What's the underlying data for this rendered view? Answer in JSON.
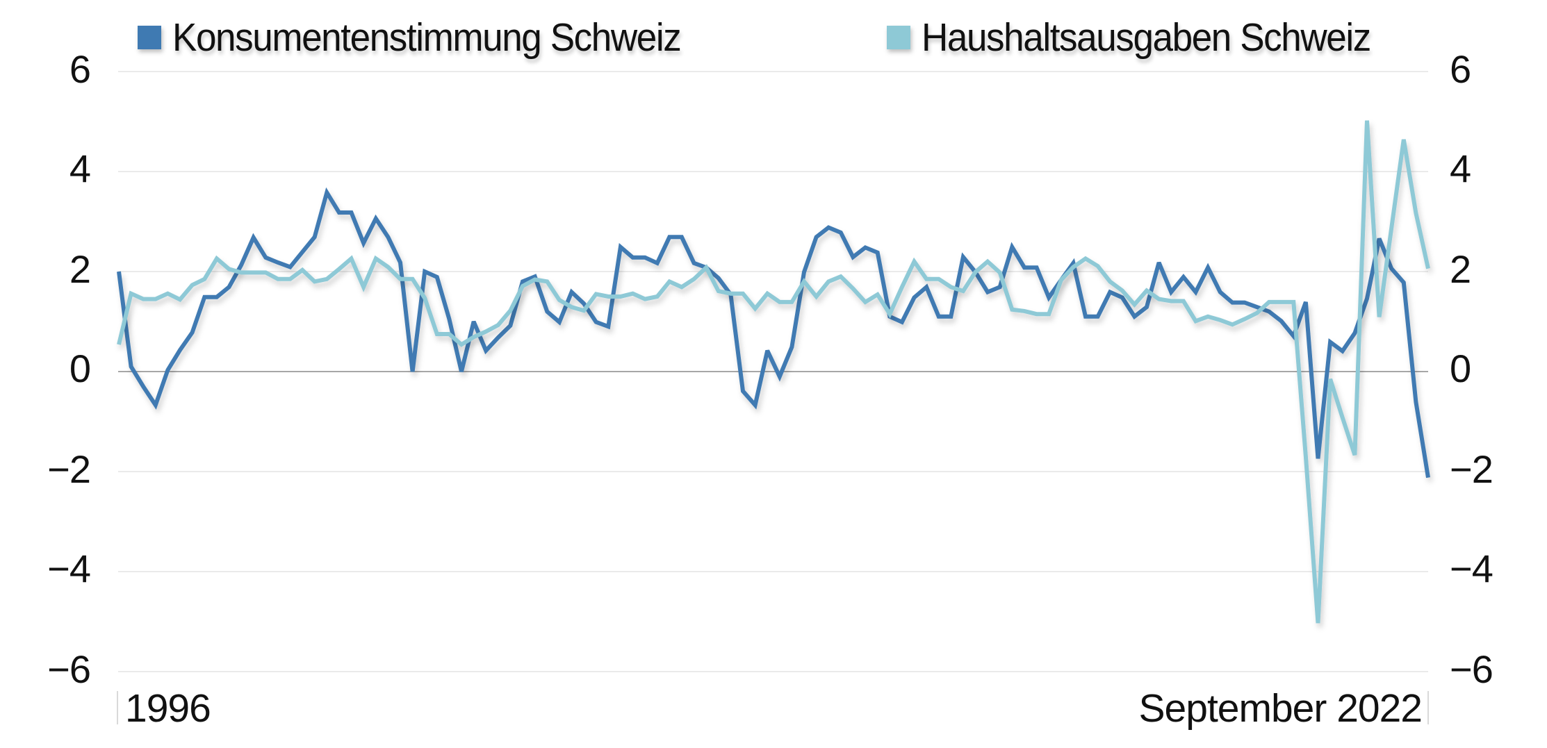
{
  "legend": {
    "items": [
      {
        "label": "Konsumentenstimmung Schweiz",
        "color": "#3f7ab2"
      },
      {
        "label": "Haushaltsausgaben Schweiz",
        "color": "#8ec9d6"
      }
    ]
  },
  "axes": {
    "y_left_ticks": [
      "6",
      "4",
      "2",
      "0",
      "−2",
      "−4",
      "−6"
    ],
    "y_right_ticks": [
      "6",
      "4",
      "2",
      "0",
      "−2",
      "−4",
      "−6"
    ],
    "x_start_label": "1996",
    "x_end_label": "September 2022"
  },
  "chart_data": {
    "type": "line",
    "title": "",
    "xlabel": "",
    "ylabel": "",
    "x_range_labels": [
      "1996",
      "September 2022"
    ],
    "x_frequency": "quarterly",
    "ylim": [
      -6,
      6
    ],
    "yticks": [
      6,
      4,
      2,
      0,
      -2,
      -4,
      -6
    ],
    "grid": true,
    "legend_position": "top",
    "dual_axis_identical_scale": true,
    "series": [
      {
        "name": "Konsumentenstimmung Schweiz",
        "color": "#3f7ab2",
        "values": [
          2.0,
          0.1,
          -0.3,
          -0.67,
          0.03,
          0.43,
          0.78,
          1.49,
          1.49,
          1.69,
          2.13,
          2.68,
          2.28,
          2.18,
          2.09,
          2.39,
          2.69,
          3.58,
          3.18,
          3.18,
          2.57,
          3.06,
          2.69,
          2.18,
          0.0,
          2.0,
          1.89,
          1.05,
          0.0,
          1.0,
          0.42,
          0.68,
          0.92,
          1.8,
          1.9,
          1.2,
          0.99,
          1.59,
          1.36,
          0.99,
          0.9,
          2.49,
          2.28,
          2.28,
          2.17,
          2.69,
          2.69,
          2.17,
          2.08,
          1.87,
          1.54,
          -0.39,
          -0.67,
          0.42,
          -0.1,
          0.49,
          1.99,
          2.69,
          2.88,
          2.78,
          2.29,
          2.48,
          2.38,
          1.1,
          0.99,
          1.48,
          1.69,
          1.1,
          1.1,
          2.29,
          1.99,
          1.59,
          1.69,
          2.49,
          2.08,
          2.08,
          1.48,
          1.83,
          2.17,
          1.1,
          1.1,
          1.59,
          1.48,
          1.1,
          1.29,
          2.18,
          1.59,
          1.89,
          1.59,
          2.08,
          1.59,
          1.38,
          1.38,
          1.29,
          1.2,
          1.01,
          0.71,
          1.39,
          -1.74,
          0.59,
          0.41,
          0.77,
          1.46,
          2.66,
          2.06,
          1.78,
          -0.61,
          -2.12
        ]
      },
      {
        "name": "Haushaltsausgaben Schweiz",
        "color": "#8ec9d6",
        "values": [
          0.54,
          1.56,
          1.45,
          1.45,
          1.56,
          1.44,
          1.73,
          1.85,
          2.26,
          2.05,
          1.98,
          1.98,
          1.98,
          1.85,
          1.85,
          2.03,
          1.8,
          1.85,
          2.05,
          2.26,
          1.69,
          2.26,
          2.09,
          1.85,
          1.85,
          1.47,
          0.75,
          0.75,
          0.54,
          0.69,
          0.8,
          0.93,
          1.22,
          1.71,
          1.84,
          1.8,
          1.43,
          1.29,
          1.22,
          1.55,
          1.5,
          1.5,
          1.56,
          1.45,
          1.5,
          1.8,
          1.69,
          1.85,
          2.08,
          1.61,
          1.56,
          1.56,
          1.26,
          1.56,
          1.39,
          1.39,
          1.8,
          1.5,
          1.8,
          1.9,
          1.66,
          1.39,
          1.54,
          1.15,
          1.69,
          2.2,
          1.85,
          1.85,
          1.69,
          1.61,
          1.99,
          2.2,
          1.98,
          1.24,
          1.21,
          1.15,
          1.15,
          1.83,
          2.09,
          2.26,
          2.11,
          1.8,
          1.62,
          1.34,
          1.62,
          1.45,
          1.41,
          1.41,
          1.01,
          1.1,
          1.03,
          0.94,
          1.05,
          1.17,
          1.39,
          1.39,
          1.39,
          -1.7,
          -5.03,
          -0.15,
          -0.92,
          -1.67,
          5.02,
          1.09,
          2.87,
          4.64,
          3.17,
          2.06
        ]
      }
    ]
  }
}
